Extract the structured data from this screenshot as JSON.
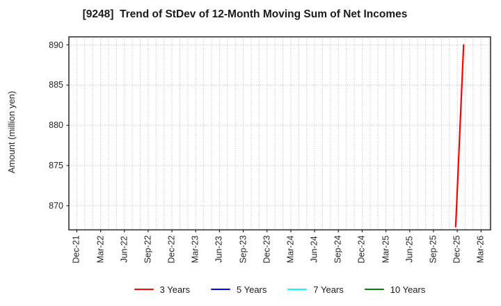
{
  "title": "[9248]  Trend of StDev of 12-Month Moving Sum of Net Incomes",
  "colors": {
    "background": "#ffffff",
    "axis": "#262626",
    "grid": "#b3b3b3",
    "text": "#262626",
    "title_text": "#1a1a1a"
  },
  "chart_data": {
    "type": "line",
    "title": "[9248]  Trend of StDev of 12-Month Moving Sum of Net Incomes",
    "xlabel": "",
    "ylabel": "Amount (million yen)",
    "x_tick_labels": [
      "Dec-21",
      "Mar-22",
      "Jun-22",
      "Sep-22",
      "Dec-22",
      "Mar-23",
      "Jun-23",
      "Sep-23",
      "Dec-23",
      "Mar-24",
      "Jun-24",
      "Sep-24",
      "Dec-24",
      "Mar-25",
      "Jun-25",
      "Sep-25",
      "Dec-25",
      "Mar-26"
    ],
    "x_tick_month_index": [
      0,
      3,
      6,
      9,
      12,
      15,
      18,
      21,
      24,
      27,
      30,
      33,
      36,
      39,
      42,
      45,
      48,
      51
    ],
    "xlim_months": [
      -1,
      52.2
    ],
    "y_ticks": [
      870,
      875,
      880,
      885,
      890
    ],
    "ylim": [
      867,
      891
    ],
    "grid": {
      "visible": true,
      "style": "dotted",
      "vertical_interval": "1 month",
      "horizontal_interval": 5
    },
    "legend_position": "bottom center",
    "series": [
      {
        "name": "3 Years",
        "color": "#FF0000",
        "points": [
          {
            "x": "Nov-25",
            "m": 47.8,
            "y": 867.4
          },
          {
            "x": "Dec-25",
            "m": 48.8,
            "y": 890.0
          }
        ]
      },
      {
        "name": "5 Years",
        "color": "#0000FF",
        "points": []
      },
      {
        "name": "7 Years",
        "color": "#00FFFF",
        "points": []
      },
      {
        "name": "10 Years",
        "color": "#008000",
        "points": []
      }
    ]
  }
}
